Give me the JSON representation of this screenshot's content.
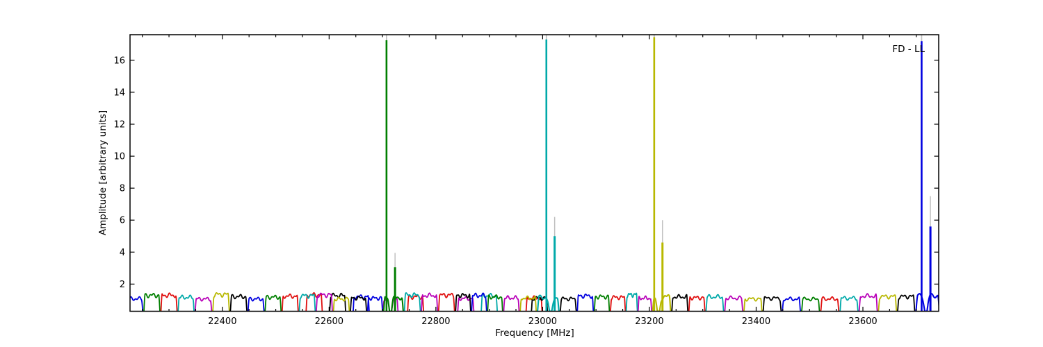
{
  "figure": {
    "xlabel": "Frequency [MHz]",
    "ylabel": "Amplitude [arbitrary units]",
    "annotation": "FD - LL",
    "background": "#ffffff",
    "frame_color": "#000000"
  },
  "chart_data": {
    "type": "line",
    "title": "",
    "xlabel": "Frequency [MHz]",
    "ylabel": "Amplitude [arbitrary units]",
    "annotation": "FD - LL",
    "xlim": [
      22227,
      23742
    ],
    "ylim": [
      0.3,
      17.6
    ],
    "x_major_ticks": [
      22400,
      22600,
      22800,
      23000,
      23200,
      23400,
      23600
    ],
    "x_minor_step": 50,
    "y_major_ticks": [
      2,
      4,
      6,
      8,
      10,
      12,
      14,
      16
    ],
    "grid": false,
    "legend": "none",
    "colors": {
      "b": "#0000e0",
      "g": "#007f00",
      "r": "#e01010",
      "c": "#00a9a9",
      "m": "#b800b8",
      "y": "#b8b800",
      "k": "#000000",
      "gray": "#c0c0c0"
    },
    "baseline_amplitude_range": [
      1.05,
      1.35
    ],
    "baseline_segments": [
      [
        22218,
        22252,
        "b"
      ],
      [
        22252,
        22284,
        "g"
      ],
      [
        22284,
        22316,
        "r"
      ],
      [
        22316,
        22348,
        "c"
      ],
      [
        22348,
        22381,
        "m"
      ],
      [
        22381,
        22414,
        "y"
      ],
      [
        22414,
        22447,
        "k"
      ],
      [
        22447,
        22479,
        "b"
      ],
      [
        22479,
        22511,
        "g"
      ],
      [
        22511,
        22543,
        "r"
      ],
      [
        22543,
        22575,
        "c"
      ],
      [
        22575,
        22607,
        "m"
      ],
      [
        22607,
        22639,
        "y"
      ],
      [
        22639,
        22671,
        "k"
      ],
      [
        22671,
        22701,
        "b"
      ],
      [
        22701,
        22740,
        "g"
      ],
      [
        22740,
        22772,
        "c"
      ],
      [
        22772,
        22804,
        "m"
      ],
      [
        22804,
        22836,
        "r"
      ],
      [
        22836,
        22866,
        "k"
      ],
      [
        22866,
        22896,
        "b"
      ],
      [
        22896,
        22926,
        "g"
      ],
      [
        22926,
        22957,
        "m"
      ],
      [
        22957,
        22989,
        "y"
      ],
      [
        22989,
        23032,
        "c"
      ],
      [
        23032,
        23064,
        "k"
      ],
      [
        23064,
        23096,
        "b"
      ],
      [
        23096,
        23126,
        "g"
      ],
      [
        23126,
        23156,
        "r"
      ],
      [
        23156,
        23178,
        "c"
      ],
      [
        23178,
        23205,
        "m"
      ],
      [
        23205,
        23241,
        "y"
      ],
      [
        23241,
        23273,
        "k"
      ],
      [
        23273,
        23305,
        "r"
      ],
      [
        23305,
        23340,
        "c"
      ],
      [
        23340,
        23376,
        "m"
      ],
      [
        23376,
        23412,
        "y"
      ],
      [
        23412,
        23448,
        "k"
      ],
      [
        23448,
        23484,
        "b"
      ],
      [
        23484,
        23520,
        "g"
      ],
      [
        23520,
        23556,
        "r"
      ],
      [
        23556,
        23592,
        "c"
      ],
      [
        23592,
        23628,
        "m"
      ],
      [
        23628,
        23664,
        "y"
      ],
      [
        23664,
        23698,
        "k"
      ],
      [
        23698,
        23745,
        "b"
      ]
    ],
    "overlay_segments": [
      [
        22556,
        22588,
        "r"
      ],
      [
        22600,
        22632,
        "k"
      ],
      [
        22644,
        22676,
        "b"
      ],
      [
        22700,
        22730,
        "m"
      ],
      [
        22746,
        22778,
        "r"
      ],
      [
        22840,
        22872,
        "m"
      ],
      [
        22884,
        22916,
        "c"
      ],
      [
        22968,
        23000,
        "r"
      ],
      [
        22978,
        23010,
        "k"
      ]
    ],
    "spikes": [
      {
        "color": "g",
        "main_freq": 22707.5,
        "main_amp": 17.25,
        "main_gray_amp": 19,
        "dip_center": 22715,
        "dip_width": 2.4,
        "secondary_freq": 22723.5,
        "secondary_amp": 3.05,
        "secondary_gray_amp": 3.95
      },
      {
        "color": "c",
        "main_freq": 23007,
        "main_amp": 17.3,
        "main_gray_amp": 19,
        "dip_center": 23015,
        "dip_width": 3.0,
        "secondary_freq": 23022.5,
        "secondary_amp": 5.0,
        "secondary_gray_amp": 6.2
      },
      {
        "color": "y",
        "main_freq": 23209,
        "main_amp": 17.45,
        "main_gray_amp": 19,
        "dip_center": 23217,
        "dip_width": 3.0,
        "secondary_freq": 23224.5,
        "secondary_amp": 4.6,
        "secondary_gray_amp": 6.0
      },
      {
        "color": "b",
        "main_freq": 23710,
        "main_amp": 17.2,
        "main_gray_amp": 19,
        "dip_center": 23718,
        "dip_width": 3.0,
        "secondary_freq": 23726.5,
        "secondary_amp": 5.6,
        "secondary_gray_amp": 7.5
      }
    ]
  }
}
